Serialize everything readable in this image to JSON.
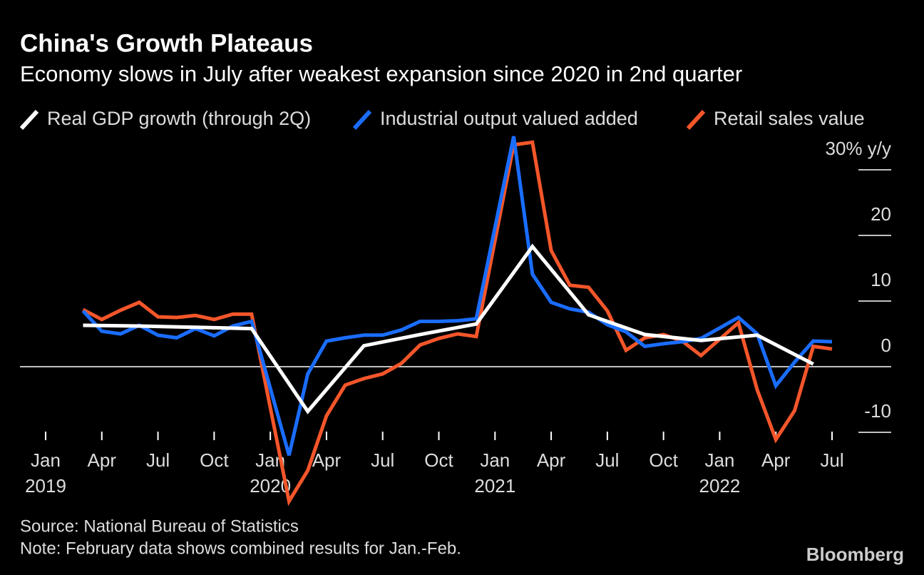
{
  "chart_data": {
    "type": "line",
    "title": "China's Growth Plateaus",
    "subtitle": "Economy slows in July after weakest expansion since 2020 in 2nd quarter",
    "source": "Source: National Bureau of Statistics",
    "note": "Note: February data shows combined results for Jan.-Feb.",
    "brand": "Bloomberg",
    "xlim": [
      "2019-01",
      "2022-07"
    ],
    "ylim": [
      -10,
      30
    ],
    "yticks": [
      -10,
      0,
      10,
      20,
      {
        "value": 30,
        "label": "30% y/y"
      }
    ],
    "xticks": [
      {
        "value": "2019-01",
        "label": "Jan"
      },
      {
        "value": "2019-04",
        "label": "Apr"
      },
      {
        "value": "2019-07",
        "label": "Jul"
      },
      {
        "value": "2019-10",
        "label": "Oct"
      },
      {
        "value": "2020-01",
        "label": "Jan"
      },
      {
        "value": "2020-04",
        "label": "Apr"
      },
      {
        "value": "2020-07",
        "label": "Jul"
      },
      {
        "value": "2020-10",
        "label": "Oct"
      },
      {
        "value": "2021-01",
        "label": "Jan"
      },
      {
        "value": "2021-04",
        "label": "Apr"
      },
      {
        "value": "2021-07",
        "label": "Jul"
      },
      {
        "value": "2021-10",
        "label": "Oct"
      },
      {
        "value": "2022-01",
        "label": "Jan"
      },
      {
        "value": "2022-04",
        "label": "Apr"
      },
      {
        "value": "2022-07",
        "label": "Jul"
      }
    ],
    "xtick_years": [
      {
        "value": "2019-01",
        "label": "2019"
      },
      {
        "value": "2020-01",
        "label": "2020"
      },
      {
        "value": "2021-01",
        "label": "2021"
      },
      {
        "value": "2022-01",
        "label": "2022"
      }
    ],
    "series": [
      {
        "name": "Real GDP growth (through 2Q)",
        "color": "#ffffff",
        "x": [
          "2019-03",
          "2019-06",
          "2019-09",
          "2019-12",
          "2020-03",
          "2020-06",
          "2020-09",
          "2020-12",
          "2021-03",
          "2021-06",
          "2021-09",
          "2021-12",
          "2022-03",
          "2022-06"
        ],
        "values": [
          6.3,
          6.2,
          6.0,
          5.8,
          -6.8,
          3.2,
          4.9,
          6.5,
          18.3,
          7.9,
          4.9,
          4.0,
          4.8,
          0.4
        ]
      },
      {
        "name": "Industrial output valued added",
        "color": "#1a6dff",
        "x": [
          "2019-03",
          "2019-04",
          "2019-05",
          "2019-06",
          "2019-07",
          "2019-08",
          "2019-09",
          "2019-10",
          "2019-11",
          "2019-12",
          "2020-02",
          "2020-03",
          "2020-04",
          "2020-05",
          "2020-06",
          "2020-07",
          "2020-08",
          "2020-09",
          "2020-10",
          "2020-11",
          "2020-12",
          "2021-02",
          "2021-03",
          "2021-04",
          "2021-05",
          "2021-06",
          "2021-07",
          "2021-08",
          "2021-09",
          "2021-10",
          "2021-11",
          "2021-12",
          "2022-02",
          "2022-03",
          "2022-04",
          "2022-05",
          "2022-06",
          "2022-07"
        ],
        "values": [
          8.5,
          5.4,
          5.0,
          6.3,
          4.8,
          4.4,
          5.8,
          4.7,
          6.2,
          6.9,
          -13.5,
          -1.1,
          3.9,
          4.4,
          4.8,
          4.8,
          5.6,
          6.9,
          6.9,
          7.0,
          7.3,
          35.1,
          14.1,
          9.8,
          8.8,
          8.3,
          6.4,
          5.3,
          3.1,
          3.5,
          3.8,
          4.3,
          7.5,
          5.0,
          -2.9,
          0.7,
          3.9,
          3.8
        ]
      },
      {
        "name": "Retail sales value",
        "color": "#f4562a",
        "x": [
          "2019-03",
          "2019-04",
          "2019-05",
          "2019-06",
          "2019-07",
          "2019-08",
          "2019-09",
          "2019-10",
          "2019-11",
          "2019-12",
          "2020-02",
          "2020-03",
          "2020-04",
          "2020-05",
          "2020-06",
          "2020-07",
          "2020-08",
          "2020-09",
          "2020-10",
          "2020-11",
          "2020-12",
          "2021-02",
          "2021-03",
          "2021-04",
          "2021-05",
          "2021-06",
          "2021-07",
          "2021-08",
          "2021-09",
          "2021-10",
          "2021-11",
          "2021-12",
          "2022-02",
          "2022-03",
          "2022-04",
          "2022-05",
          "2022-06",
          "2022-07"
        ],
        "values": [
          8.7,
          7.2,
          8.6,
          9.8,
          7.6,
          7.5,
          7.8,
          7.2,
          8.0,
          8.0,
          -20.5,
          -15.8,
          -7.5,
          -2.8,
          -1.8,
          -1.1,
          0.5,
          3.3,
          4.3,
          5.0,
          4.6,
          33.8,
          34.2,
          17.7,
          12.4,
          12.1,
          8.5,
          2.5,
          4.4,
          4.9,
          3.9,
          1.7,
          6.7,
          -3.5,
          -11.1,
          -6.7,
          3.1,
          2.7
        ]
      }
    ]
  }
}
